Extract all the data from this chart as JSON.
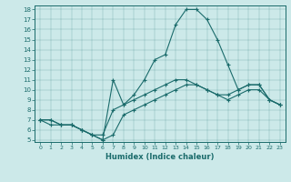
{
  "xlabel": "Humidex (Indice chaleur)",
  "bg_color": "#cce9e9",
  "line_color": "#1a6b6b",
  "xlim": [
    -0.5,
    23.5
  ],
  "ylim": [
    4.8,
    18.4
  ],
  "xticks": [
    0,
    1,
    2,
    3,
    4,
    5,
    6,
    7,
    8,
    9,
    10,
    11,
    12,
    13,
    14,
    15,
    16,
    17,
    18,
    19,
    20,
    21,
    22,
    23
  ],
  "yticks": [
    5,
    6,
    7,
    8,
    9,
    10,
    11,
    12,
    13,
    14,
    15,
    16,
    17,
    18
  ],
  "line1_x": [
    0,
    1,
    2,
    3,
    4,
    5,
    6,
    7,
    8,
    9,
    10,
    11,
    12,
    13,
    14,
    15,
    16,
    17,
    18,
    19,
    20,
    21,
    22,
    23
  ],
  "line1_y": [
    7.0,
    7.0,
    6.5,
    6.5,
    6.0,
    5.5,
    5.5,
    8.0,
    8.5,
    9.0,
    9.5,
    10.0,
    10.5,
    11.0,
    11.0,
    10.5,
    10.0,
    9.5,
    9.5,
    10.0,
    10.5,
    10.5,
    9.0,
    8.5
  ],
  "line2_x": [
    0,
    1,
    2,
    3,
    4,
    5,
    6,
    7,
    8,
    9,
    10,
    11,
    12,
    13,
    14,
    15,
    16,
    17,
    18,
    19,
    20,
    21,
    22,
    23
  ],
  "line2_y": [
    7.0,
    7.0,
    6.5,
    6.5,
    6.0,
    5.5,
    5.0,
    5.5,
    7.5,
    8.0,
    8.5,
    9.0,
    9.5,
    10.0,
    10.5,
    10.5,
    10.0,
    9.5,
    9.0,
    9.5,
    10.0,
    10.0,
    9.0,
    8.5
  ],
  "line3_x": [
    0,
    1,
    2,
    3,
    4,
    5,
    6,
    7,
    8,
    9,
    10,
    11,
    12,
    13,
    14,
    15,
    16,
    17,
    18,
    19,
    20,
    21,
    22,
    23
  ],
  "line3_y": [
    7.0,
    6.5,
    6.5,
    6.5,
    6.0,
    5.5,
    5.0,
    11.0,
    8.5,
    9.5,
    11.0,
    13.0,
    13.5,
    16.5,
    18.0,
    18.0,
    17.0,
    15.0,
    12.5,
    10.0,
    10.5,
    10.5,
    9.0,
    8.5
  ]
}
